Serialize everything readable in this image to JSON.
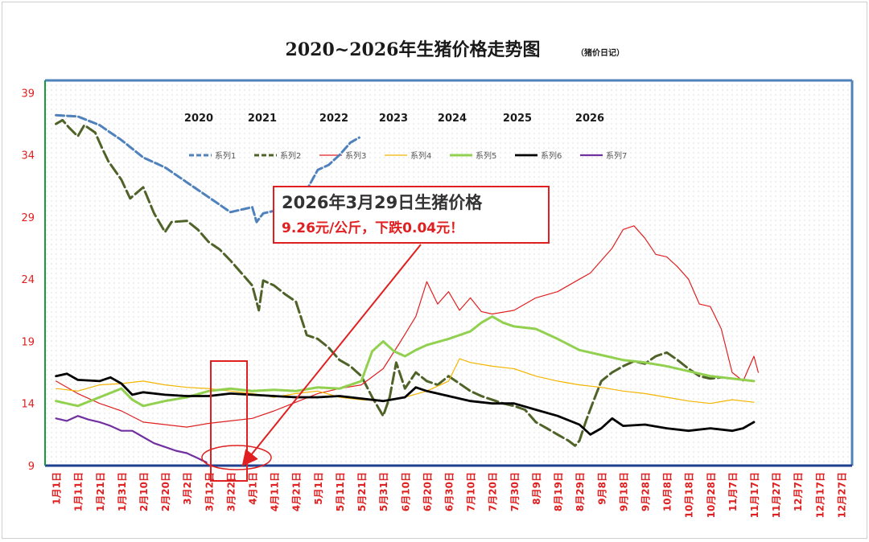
{
  "chart_data": {
    "type": "line",
    "title": "2020~2026年生猪价格走势图",
    "subtitle": "（猪价日记）",
    "ylim": [
      9,
      40
    ],
    "yticks": [
      9,
      14,
      19,
      24,
      29,
      34,
      39
    ],
    "x_tick_labels": [
      "1月1日",
      "1月11日",
      "1月21日",
      "1月31日",
      "2月10日",
      "2月20日",
      "3月2日",
      "3月12日",
      "3月22日",
      "4月1日",
      "4月11日",
      "4月21日",
      "5月1日",
      "5月11日",
      "5月21日",
      "5月31日",
      "6月10日",
      "6月20日",
      "6月30日",
      "7月10日",
      "7月20日",
      "7月30日",
      "8月9日",
      "8月19日",
      "8月29日",
      "9月8日",
      "9月18日",
      "9月28日",
      "10月8日",
      "10月18日",
      "10月28日",
      "11月7日",
      "11月17日",
      "11月27日",
      "12月7日",
      "12月17日",
      "12月27日"
    ],
    "year_labels": [
      "2020",
      "2021",
      "2022",
      "2023",
      "2024",
      "2025",
      "2026"
    ],
    "legend_position": "top",
    "grid": false,
    "series": [
      {
        "name": "系列1",
        "color": "#4f81bd",
        "dash": "10,4",
        "width": 3,
        "points": [
          [
            1,
            37.2
          ],
          [
            2,
            37.1
          ],
          [
            3,
            36.4
          ],
          [
            4,
            35.2
          ],
          [
            5,
            33.8
          ],
          [
            6,
            33.0
          ],
          [
            7,
            31.8
          ],
          [
            8,
            30.6
          ],
          [
            9,
            29.4
          ],
          [
            10,
            29.8
          ],
          [
            10.2,
            28.6
          ],
          [
            10.5,
            29.3
          ],
          [
            11,
            29.5
          ],
          [
            12,
            29.6
          ],
          [
            12.5,
            31.2
          ],
          [
            13,
            32.8
          ],
          [
            13.5,
            33.2
          ],
          [
            14,
            34.0
          ],
          [
            14.5,
            35.0
          ],
          [
            14.9,
            35.4
          ]
        ]
      },
      {
        "name": "系列2",
        "color": "#4f6228",
        "dash": "14,5",
        "width": 3,
        "points": [
          [
            1,
            36.5
          ],
          [
            1.3,
            36.8
          ],
          [
            1.6,
            36.2
          ],
          [
            2,
            35.5
          ],
          [
            2.3,
            36.4
          ],
          [
            2.8,
            35.8
          ],
          [
            3.1,
            34.6
          ],
          [
            3.4,
            33.5
          ],
          [
            4,
            32.0
          ],
          [
            4.4,
            30.5
          ],
          [
            5,
            31.4
          ],
          [
            5.5,
            29.3
          ],
          [
            6,
            27.8
          ],
          [
            6.3,
            28.6
          ],
          [
            7,
            28.7
          ],
          [
            7.5,
            28.0
          ],
          [
            8,
            27.0
          ],
          [
            8.5,
            26.4
          ],
          [
            9,
            25.5
          ],
          [
            9.5,
            24.5
          ],
          [
            10,
            23.5
          ],
          [
            10.3,
            21.5
          ],
          [
            10.5,
            23.9
          ],
          [
            11,
            23.5
          ],
          [
            11.5,
            22.8
          ],
          [
            12,
            22.2
          ],
          [
            12.5,
            19.5
          ],
          [
            13,
            19.2
          ],
          [
            13.5,
            18.5
          ],
          [
            14,
            17.5
          ],
          [
            14.5,
            17.0
          ],
          [
            15,
            16.2
          ],
          [
            15.5,
            14.5
          ],
          [
            16,
            13.0
          ],
          [
            16.3,
            14.5
          ],
          [
            16.6,
            17.3
          ],
          [
            17,
            15.2
          ],
          [
            17.5,
            16.5
          ],
          [
            18,
            15.8
          ],
          [
            18.5,
            15.5
          ],
          [
            19,
            16.2
          ],
          [
            19.5,
            15.6
          ],
          [
            20,
            15.0
          ],
          [
            20.5,
            14.6
          ],
          [
            21,
            14.3
          ],
          [
            21.5,
            14.0
          ],
          [
            22,
            13.8
          ],
          [
            22.5,
            13.5
          ],
          [
            23,
            12.5
          ],
          [
            23.5,
            12.0
          ],
          [
            24,
            11.5
          ],
          [
            24.5,
            11.0
          ],
          [
            24.8,
            10.6
          ],
          [
            25,
            11.0
          ],
          [
            25.3,
            12.6
          ],
          [
            25.6,
            14.0
          ],
          [
            26,
            15.8
          ],
          [
            26.5,
            16.5
          ],
          [
            27,
            17.0
          ],
          [
            27.5,
            17.4
          ],
          [
            28,
            17.2
          ],
          [
            28.5,
            17.8
          ],
          [
            29,
            18.1
          ],
          [
            29.5,
            17.5
          ],
          [
            30,
            16.8
          ],
          [
            30.5,
            16.2
          ],
          [
            31,
            16.0
          ],
          [
            31.5,
            16.1
          ]
        ]
      },
      {
        "name": "系列3",
        "color": "#e02020",
        "dash": "",
        "width": 1.2,
        "points": [
          [
            1,
            15.8
          ],
          [
            2,
            14.8
          ],
          [
            3,
            14.0
          ],
          [
            4,
            13.4
          ],
          [
            5,
            12.5
          ],
          [
            6,
            12.3
          ],
          [
            7,
            12.1
          ],
          [
            8,
            12.4
          ],
          [
            9,
            12.6
          ],
          [
            10,
            12.8
          ],
          [
            11,
            13.4
          ],
          [
            12,
            14.1
          ],
          [
            13,
            14.8
          ],
          [
            14,
            15.2
          ],
          [
            15,
            15.5
          ],
          [
            16,
            16.8
          ],
          [
            16.8,
            19.0
          ],
          [
            17.5,
            21.0
          ],
          [
            18,
            23.8
          ],
          [
            18.5,
            22.0
          ],
          [
            19,
            23.0
          ],
          [
            19.5,
            21.5
          ],
          [
            20,
            22.5
          ],
          [
            20.5,
            21.4
          ],
          [
            21,
            21.2
          ],
          [
            22,
            21.5
          ],
          [
            23,
            22.5
          ],
          [
            24,
            23.0
          ],
          [
            25,
            24.0
          ],
          [
            25.5,
            24.5
          ],
          [
            26,
            25.5
          ],
          [
            26.5,
            26.5
          ],
          [
            27,
            28.0
          ],
          [
            27.5,
            28.3
          ],
          [
            28,
            27.3
          ],
          [
            28.5,
            26.0
          ],
          [
            29,
            25.8
          ],
          [
            29.5,
            25.0
          ],
          [
            30,
            24.0
          ],
          [
            30.5,
            22.0
          ],
          [
            31,
            21.8
          ],
          [
            31.5,
            20.0
          ],
          [
            32,
            16.5
          ],
          [
            32.5,
            15.8
          ],
          [
            33,
            17.8
          ],
          [
            33.2,
            16.5
          ]
        ]
      },
      {
        "name": "系列4",
        "color": "#f4b400",
        "dash": "",
        "width": 1.2,
        "points": [
          [
            1,
            15.2
          ],
          [
            2,
            15.0
          ],
          [
            3,
            15.5
          ],
          [
            4,
            15.6
          ],
          [
            5,
            15.8
          ],
          [
            6,
            15.5
          ],
          [
            7,
            15.3
          ],
          [
            8,
            15.2
          ],
          [
            9,
            15.0
          ],
          [
            10,
            14.8
          ],
          [
            11,
            14.5
          ],
          [
            12,
            14.8
          ],
          [
            13,
            15.0
          ],
          [
            14,
            14.5
          ],
          [
            15,
            14.3
          ],
          [
            16,
            14.2
          ],
          [
            17,
            14.5
          ],
          [
            18,
            15.0
          ],
          [
            19,
            15.8
          ],
          [
            19.5,
            17.6
          ],
          [
            20,
            17.3
          ],
          [
            21,
            17.0
          ],
          [
            22,
            16.8
          ],
          [
            23,
            16.2
          ],
          [
            24,
            15.8
          ],
          [
            25,
            15.5
          ],
          [
            26,
            15.3
          ],
          [
            27,
            15.0
          ],
          [
            28,
            14.8
          ],
          [
            29,
            14.5
          ],
          [
            30,
            14.2
          ],
          [
            31,
            14.0
          ],
          [
            32,
            14.3
          ],
          [
            33,
            14.1
          ]
        ]
      },
      {
        "name": "系列5",
        "color": "#92d050",
        "dash": "",
        "width": 3,
        "points": [
          [
            1,
            14.2
          ],
          [
            2,
            13.8
          ],
          [
            3,
            14.5
          ],
          [
            4,
            15.2
          ],
          [
            4.5,
            14.3
          ],
          [
            5,
            13.8
          ],
          [
            6,
            14.2
          ],
          [
            7,
            14.5
          ],
          [
            8,
            15.0
          ],
          [
            9,
            15.2
          ],
          [
            10,
            15.0
          ],
          [
            11,
            15.1
          ],
          [
            12,
            15.0
          ],
          [
            13,
            15.3
          ],
          [
            14,
            15.2
          ],
          [
            15,
            15.8
          ],
          [
            15.5,
            18.2
          ],
          [
            16,
            19.0
          ],
          [
            16.5,
            18.2
          ],
          [
            17,
            17.8
          ],
          [
            17.5,
            18.3
          ],
          [
            18,
            18.7
          ],
          [
            19,
            19.2
          ],
          [
            20,
            19.8
          ],
          [
            20.5,
            20.5
          ],
          [
            21,
            21.0
          ],
          [
            21.5,
            20.5
          ],
          [
            22,
            20.2
          ],
          [
            23,
            20.0
          ],
          [
            24,
            19.2
          ],
          [
            25,
            18.3
          ],
          [
            26,
            17.9
          ],
          [
            27,
            17.5
          ],
          [
            28,
            17.3
          ],
          [
            29,
            17.0
          ],
          [
            30,
            16.6
          ],
          [
            31,
            16.2
          ],
          [
            32,
            16.0
          ],
          [
            33,
            15.8
          ]
        ]
      },
      {
        "name": "系列6",
        "color": "#000000",
        "dash": "",
        "width": 2.8,
        "points": [
          [
            1,
            16.2
          ],
          [
            1.5,
            16.4
          ],
          [
            2,
            15.9
          ],
          [
            3,
            15.8
          ],
          [
            3.5,
            16.1
          ],
          [
            4,
            15.6
          ],
          [
            4.5,
            14.7
          ],
          [
            5,
            14.9
          ],
          [
            6,
            14.7
          ],
          [
            7,
            14.6
          ],
          [
            8,
            14.6
          ],
          [
            9,
            14.8
          ],
          [
            10,
            14.7
          ],
          [
            11,
            14.6
          ],
          [
            12,
            14.5
          ],
          [
            13,
            14.5
          ],
          [
            14,
            14.6
          ],
          [
            15,
            14.4
          ],
          [
            16,
            14.2
          ],
          [
            17,
            14.5
          ],
          [
            17.5,
            15.3
          ],
          [
            18,
            15.0
          ],
          [
            19,
            14.6
          ],
          [
            20,
            14.2
          ],
          [
            21,
            14.0
          ],
          [
            22,
            14.0
          ],
          [
            23,
            13.5
          ],
          [
            24,
            13.0
          ],
          [
            25,
            12.3
          ],
          [
            25.5,
            11.5
          ],
          [
            26,
            12.0
          ],
          [
            26.5,
            12.8
          ],
          [
            27,
            12.2
          ],
          [
            28,
            12.3
          ],
          [
            29,
            12.0
          ],
          [
            30,
            11.8
          ],
          [
            31,
            12.0
          ],
          [
            32,
            11.8
          ],
          [
            32.5,
            12.0
          ],
          [
            33,
            12.5
          ]
        ]
      },
      {
        "name": "系列7",
        "color": "#7030a0",
        "dash": "",
        "width": 2.2,
        "points": [
          [
            1,
            12.8
          ],
          [
            1.5,
            12.6
          ],
          [
            2,
            13.0
          ],
          [
            2.5,
            12.7
          ],
          [
            3,
            12.5
          ],
          [
            3.5,
            12.2
          ],
          [
            4,
            11.8
          ],
          [
            4.5,
            11.8
          ],
          [
            5,
            11.3
          ],
          [
            5.5,
            10.8
          ],
          [
            6,
            10.5
          ],
          [
            6.5,
            10.2
          ],
          [
            7,
            10.0
          ],
          [
            7.5,
            9.6
          ],
          [
            7.9,
            9.26
          ]
        ]
      }
    ],
    "callout": {
      "line1": "2026年3月29日生猪价格",
      "line2": "9.26元/公斤，下跌0.04元！"
    }
  }
}
